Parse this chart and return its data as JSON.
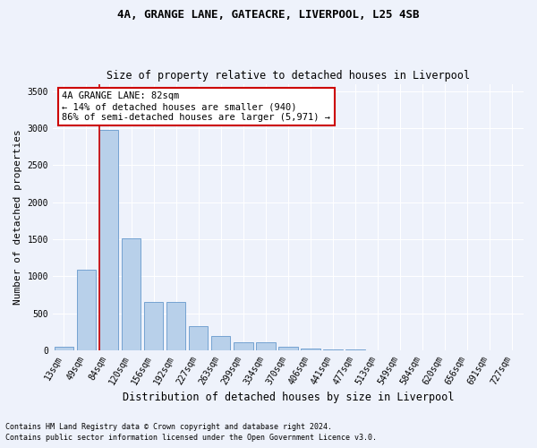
{
  "title1": "4A, GRANGE LANE, GATEACRE, LIVERPOOL, L25 4SB",
  "title2": "Size of property relative to detached houses in Liverpool",
  "xlabel": "Distribution of detached houses by size in Liverpool",
  "ylabel": "Number of detached properties",
  "bar_labels": [
    "13sqm",
    "49sqm",
    "84sqm",
    "120sqm",
    "156sqm",
    "192sqm",
    "227sqm",
    "263sqm",
    "299sqm",
    "334sqm",
    "370sqm",
    "406sqm",
    "441sqm",
    "477sqm",
    "513sqm",
    "549sqm",
    "584sqm",
    "620sqm",
    "656sqm",
    "691sqm",
    "727sqm"
  ],
  "bar_values": [
    50,
    1090,
    2980,
    1510,
    650,
    650,
    325,
    195,
    115,
    115,
    50,
    28,
    18,
    12,
    6,
    6,
    4,
    4,
    2,
    2,
    1
  ],
  "bar_color": "#b8d0ea",
  "bar_edge_color": "#6699cc",
  "ylim": [
    0,
    3600
  ],
  "yticks": [
    0,
    500,
    1000,
    1500,
    2000,
    2500,
    3000,
    3500
  ],
  "vline_x_idx": 2,
  "vline_color": "#cc0000",
  "annotation_text": "4A GRANGE LANE: 82sqm\n← 14% of detached houses are smaller (940)\n86% of semi-detached houses are larger (5,971) →",
  "annotation_box_color": "#ffffff",
  "annotation_box_edge": "#cc0000",
  "footnote1": "Contains HM Land Registry data © Crown copyright and database right 2024.",
  "footnote2": "Contains public sector information licensed under the Open Government Licence v3.0.",
  "background_color": "#eef2fb",
  "plot_background": "#eef2fb",
  "grid_color": "#ffffff",
  "title_fontsize": 9,
  "subtitle_fontsize": 8.5,
  "tick_fontsize": 7,
  "ylabel_fontsize": 8,
  "xlabel_fontsize": 8.5,
  "annotation_fontsize": 7.5,
  "footnote_fontsize": 6
}
